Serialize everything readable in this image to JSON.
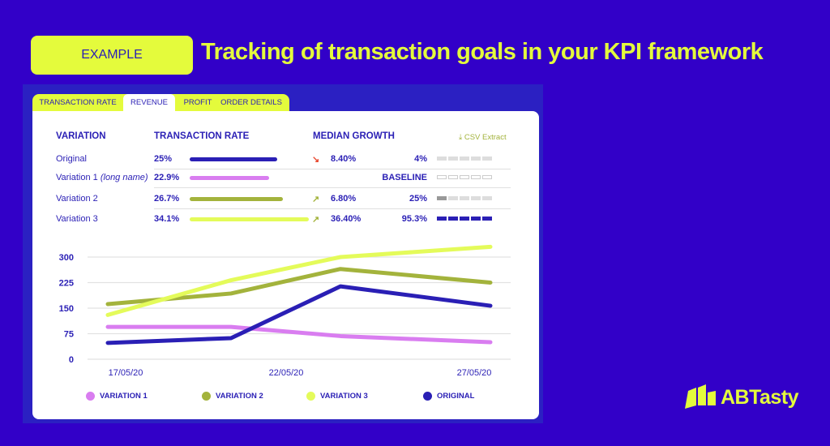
{
  "header": {
    "badge": "EXAMPLE",
    "title": "Tracking of transaction goals in your KPI framework"
  },
  "tabs": [
    {
      "label": "TRANSACTION RATE"
    },
    {
      "label": "REVENUE",
      "active": true
    },
    {
      "label": "PROFIT"
    },
    {
      "label": "ORDER DETAILS"
    }
  ],
  "table": {
    "columns": [
      "VARIATION",
      "TRANSACTION RATE",
      "MEDIAN GROWTH"
    ],
    "csv_label": "CSV Extract",
    "rows": [
      {
        "name": "Original",
        "suffix": "",
        "rate": "25%",
        "rate_value": 25,
        "color": "#2a1fb5",
        "trend": "down",
        "growth": "8.40%",
        "score": "4%",
        "segments_filled": 0,
        "segment_style": "gray"
      },
      {
        "name": "Variation 1",
        "suffix": "(long name)",
        "rate": "22.9%",
        "rate_value": 22.9,
        "color": "#d97df0",
        "trend": "",
        "growth": "",
        "score": "BASELINE",
        "segments_filled": 0,
        "segment_style": "outline"
      },
      {
        "name": "Variation 2",
        "suffix": "",
        "rate": "26.7%",
        "rate_value": 26.7,
        "color": "#a3b33c",
        "trend": "up",
        "growth": "6.80%",
        "score": "25%",
        "segments_filled": 1,
        "segment_style": "gray"
      },
      {
        "name": "Variation 3",
        "suffix": "",
        "rate": "34.1%",
        "rate_value": 34.1,
        "color": "#e4fb5a",
        "trend": "up",
        "growth": "36.40%",
        "score": "95.3%",
        "segments_filled": 5,
        "segment_style": "blue"
      }
    ]
  },
  "chart_data": {
    "type": "line",
    "x": [
      "17/05/20",
      "20/05/20",
      "23/05/20",
      "27/05/20"
    ],
    "xticks": [
      "17/05/20",
      "22/05/20",
      "27/05/20"
    ],
    "yticks": [
      0,
      75,
      150,
      225,
      300
    ],
    "ylim": [
      0,
      330
    ],
    "grid": true,
    "legend": "bottom",
    "series": [
      {
        "name": "VARIATION 1",
        "color": "#d97df0",
        "values": [
          95,
          95,
          68,
          50
        ]
      },
      {
        "name": "VARIATION 2",
        "color": "#a3b33c",
        "values": [
          162,
          193,
          265,
          225
        ]
      },
      {
        "name": "VARIATION 3",
        "color": "#e4fb5a",
        "values": [
          130,
          232,
          300,
          330
        ]
      },
      {
        "name": "ORIGINAL",
        "color": "#2a1fb5",
        "values": [
          48,
          62,
          214,
          157
        ]
      }
    ]
  },
  "brand": {
    "logo": "ABTasty"
  }
}
